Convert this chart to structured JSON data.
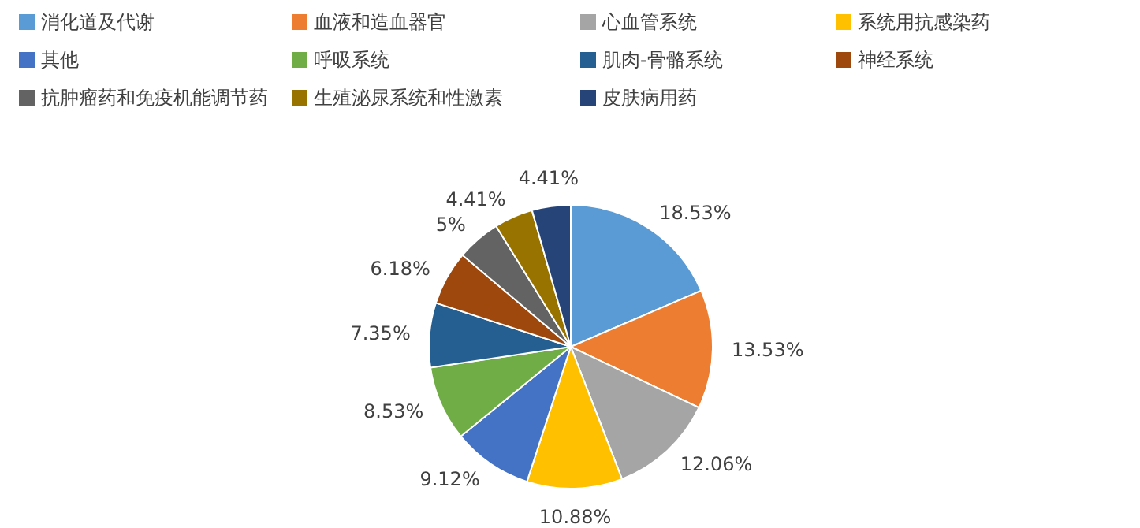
{
  "chart_data": {
    "type": "pie",
    "categories": [
      "消化道及代谢",
      "血液和造血器官",
      "心血管系统",
      "系统用抗感染药",
      "其他",
      "呼吸系统",
      "肌肉-骨骼系统",
      "神经系统",
      "抗肿瘤药和免疫机能调节药",
      "生殖泌尿系统和性激素",
      "皮肤病用药"
    ],
    "values": [
      18.53,
      13.53,
      12.06,
      10.88,
      9.12,
      8.53,
      7.35,
      6.18,
      5,
      4.41,
      4.41
    ],
    "value_labels": [
      "18.53%",
      "13.53%",
      "12.06%",
      "10.88%",
      "9.12%",
      "8.53%",
      "7.35%",
      "6.18%",
      "5%",
      "4.41%",
      "4.41%"
    ],
    "colors": [
      "#5b9bd5",
      "#ed7d31",
      "#a5a5a5",
      "#ffc000",
      "#4472c4",
      "#70ad47",
      "#255e91",
      "#9e480e",
      "#636363",
      "#997300",
      "#264478"
    ],
    "legend": "top"
  }
}
